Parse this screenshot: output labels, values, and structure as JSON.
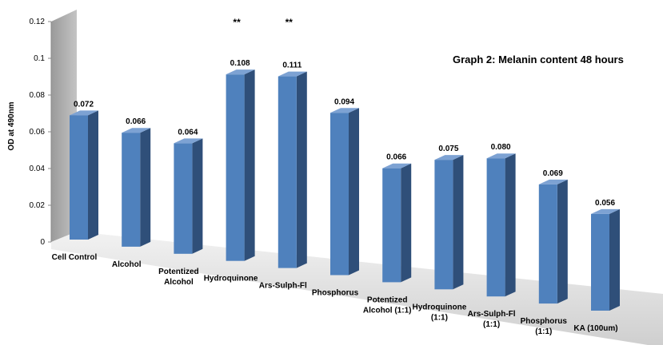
{
  "chart_data": {
    "type": "bar",
    "title": "Graph 2: Melanin content 48 hours",
    "ylabel": "OD at 490nm",
    "xlabel": "",
    "ylim": [
      0,
      0.12
    ],
    "yticks": [
      "0",
      "0.02",
      "0.04",
      "0.06",
      "0.08",
      "0.1",
      "0.12"
    ],
    "categories": [
      [
        "Cell Control"
      ],
      [
        "Alcohol"
      ],
      [
        "Potentized",
        "Alcohol"
      ],
      [
        "Hydroquinone"
      ],
      [
        "Ars-Sulph-Fl"
      ],
      [
        "Phosphorus"
      ],
      [
        "Potentized",
        "Alcohol (1:1)"
      ],
      [
        "Hydroquinone",
        "(1:1)"
      ],
      [
        "Ars-Sulph-Fl",
        "(1:1)"
      ],
      [
        "Phosphorus",
        "(1:1)"
      ],
      [
        "KA (100um)"
      ]
    ],
    "values": [
      0.072,
      0.066,
      0.064,
      0.108,
      0.111,
      0.094,
      0.066,
      0.075,
      0.08,
      0.069,
      0.056
    ],
    "value_labels": [
      "0.072",
      "0.066",
      "0.064",
      "0.108",
      "0.111",
      "0.094",
      "0.066",
      "0.075",
      "0.080",
      "0.069",
      "0.056"
    ],
    "significance": [
      "",
      "",
      "",
      "**",
      "**",
      "",
      "",
      "",
      "",
      "",
      ""
    ],
    "bar_color": "#4f81bd",
    "bar_side_color": "#2f4f79",
    "bar_top_color": "#7da2d3",
    "wall_color": "#a6a6a6",
    "floor_color": "#e0e0e0",
    "grid": false,
    "legend": "none"
  }
}
